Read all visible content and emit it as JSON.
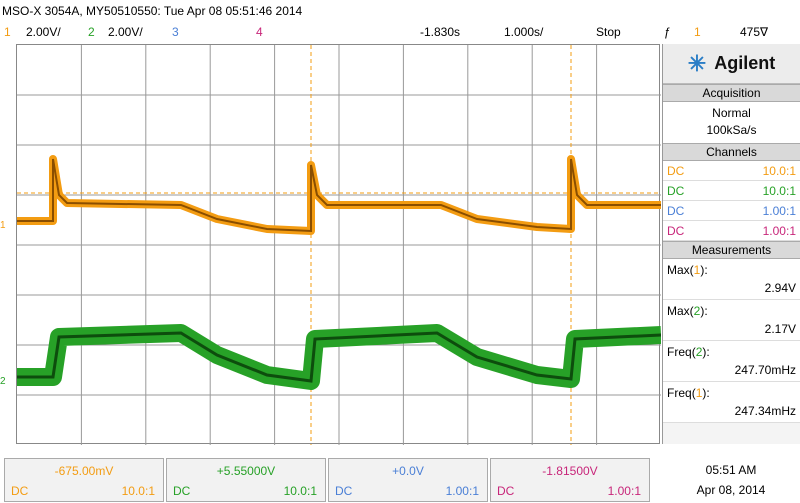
{
  "title": "MSO-X 3054A, MY50510550: Tue Apr 08 05:51:46 2014",
  "status": {
    "ch1_num": "1",
    "ch1_scale": "2.00V/",
    "ch2_num": "2",
    "ch2_scale": "2.00V/",
    "ch3_num": "3",
    "ch4_num": "4",
    "delay": "-1.830s",
    "timebase": "1.000s/",
    "run_state": "Stop",
    "trig_icon": "trigger-edge-icon",
    "trig_symbol": "ƒ",
    "trig_source": "1",
    "trig_level": "475∇"
  },
  "panel": {
    "brand": "Agilent",
    "acquisition_title": "Acquisition",
    "acq_mode": "Normal",
    "acq_rate": "100kSa/s",
    "channels_title": "Channels",
    "channels": [
      {
        "coupling": "DC",
        "probe": "10.0:1"
      },
      {
        "coupling": "DC",
        "probe": "10.0:1"
      },
      {
        "coupling": "DC",
        "probe": "1.00:1"
      },
      {
        "coupling": "DC",
        "probe": "1.00:1"
      }
    ],
    "measurements_title": "Measurements",
    "measurements": [
      {
        "name": "Max",
        "ch": "1",
        "value": "2.94V"
      },
      {
        "name": "Max",
        "ch": "2",
        "value": "2.17V"
      },
      {
        "name": "Freq",
        "ch": "2",
        "value": "247.70mHz"
      },
      {
        "name": "Freq",
        "ch": "1",
        "value": "247.34mHz"
      }
    ]
  },
  "bottom": {
    "channels": [
      {
        "offset": "-675.00mV",
        "coupling": "DC",
        "probe": "10.0:1"
      },
      {
        "offset": "+5.55000V",
        "coupling": "DC",
        "probe": "10.0:1"
      },
      {
        "offset": "+0.0V",
        "coupling": "DC",
        "probe": "1.00:1"
      },
      {
        "offset": "-1.81500V",
        "coupling": "DC",
        "probe": "1.00:1"
      }
    ],
    "time": "05:51 AM",
    "date": "Apr 08, 2014"
  },
  "markers": {
    "ch1_marker": "1",
    "ch2_marker": "2"
  },
  "colors": {
    "ch1": "#f39c12",
    "ch2": "#27a127",
    "ch3": "#4a7fd6",
    "ch4": "#c8267a"
  }
}
